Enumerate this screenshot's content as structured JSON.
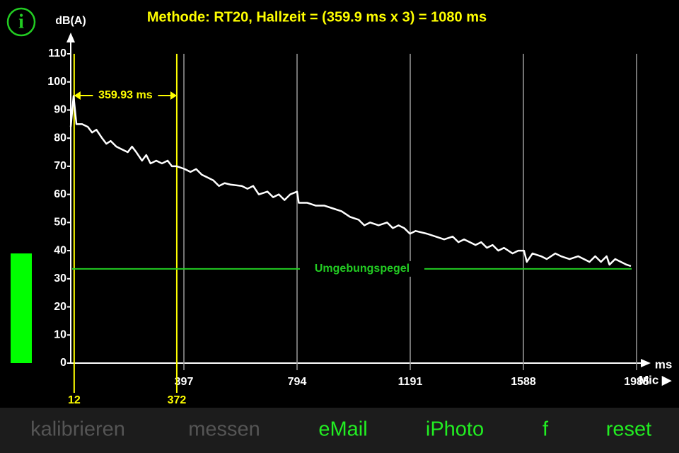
{
  "ui": {
    "info_icon": "i",
    "mic_label": "Mic ▶",
    "toolbar": [
      "kalibrieren",
      "messen",
      "eMail",
      "iPhoto",
      "f",
      "reset"
    ],
    "toolbar_enabled": [
      false,
      false,
      true,
      true,
      true,
      true
    ]
  },
  "chart_data": {
    "type": "line",
    "title": "Methode: RT20, Hallzeit = (359.9 ms x 3) = 1080 ms",
    "y_label": "dB(A)",
    "x_label": "ms",
    "x": [
      0,
      10,
      20,
      40,
      60,
      75,
      90,
      110,
      125,
      140,
      160,
      180,
      200,
      215,
      230,
      250,
      265,
      280,
      300,
      320,
      340,
      355,
      372,
      400,
      420,
      440,
      460,
      480,
      500,
      520,
      540,
      560,
      600,
      620,
      640,
      660,
      690,
      710,
      730,
      750,
      770,
      794,
      800,
      830,
      860,
      890,
      920,
      950,
      980,
      1010,
      1030,
      1050,
      1080,
      1110,
      1130,
      1150,
      1170,
      1190,
      1210,
      1250,
      1280,
      1310,
      1340,
      1360,
      1380,
      1400,
      1420,
      1440,
      1460,
      1480,
      1500,
      1520,
      1550,
      1570,
      1590,
      1600,
      1620,
      1650,
      1670,
      1700,
      1720,
      1750,
      1780,
      1800,
      1820,
      1840,
      1860,
      1880,
      1890,
      1910,
      1930,
      1950,
      1965
    ],
    "series": [
      {
        "color": "#ffffff",
        "values": [
          84,
          95,
          85,
          85,
          84,
          82,
          83,
          80,
          78,
          79,
          77,
          76,
          75,
          77,
          75,
          72,
          74,
          71,
          72,
          71,
          72,
          70,
          70,
          69,
          68,
          69,
          67,
          66,
          65,
          63,
          64,
          63.5,
          63,
          62,
          63,
          60,
          61,
          59,
          60,
          58,
          60,
          61,
          57,
          57,
          56,
          56,
          55,
          54,
          52,
          51,
          49,
          50,
          49,
          50,
          48,
          49,
          48,
          46,
          47,
          46,
          45,
          44,
          45,
          43,
          44,
          43,
          42,
          43,
          41,
          42,
          40,
          41,
          39,
          40,
          40,
          36,
          39,
          38,
          37,
          39,
          38,
          37,
          38,
          37,
          36,
          38,
          36,
          38,
          35,
          37,
          36,
          35,
          34.5
        ]
      }
    ],
    "xlim": [
      0,
      1985
    ],
    "ylim": [
      0,
      110
    ],
    "xticks": [
      397,
      794,
      1191,
      1588,
      1985
    ],
    "yticks": [
      0,
      10,
      20,
      30,
      40,
      50,
      60,
      70,
      80,
      90,
      100,
      110
    ],
    "markers": [
      12,
      372
    ],
    "marker_color": "#ffff00",
    "interval_label": "359.93 ms",
    "ambient": {
      "label": "Umgebungspegel",
      "value": 33.5,
      "color": "#22cc22"
    },
    "level_meter": 39,
    "level_color": "#00ff00"
  }
}
